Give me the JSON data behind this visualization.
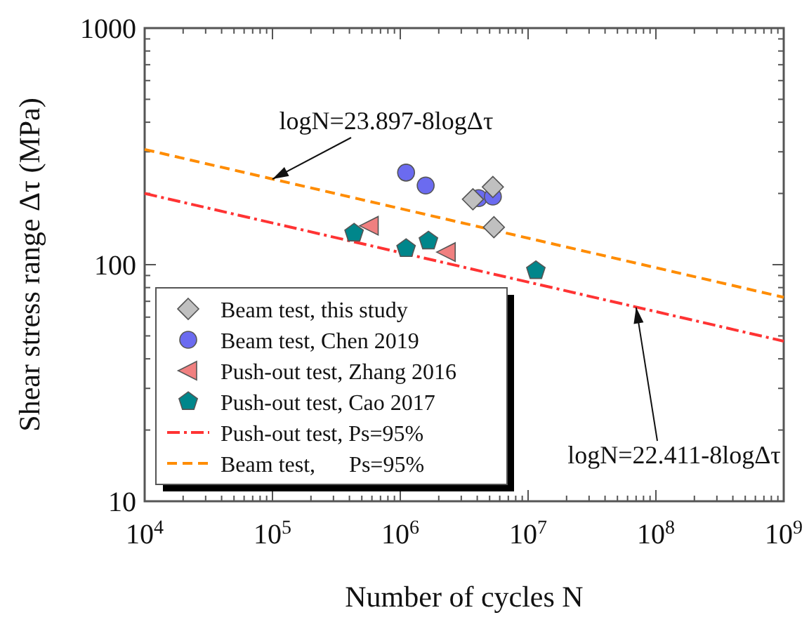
{
  "chart_data": {
    "type": "scatter",
    "xlabel": "Number of cycles N",
    "ylabel": "Shear stress range Δτ (MPa)",
    "log": "xy",
    "xlim": [
      10000,
      1000000000
    ],
    "ylim": [
      10,
      1000
    ],
    "xticks": [
      {
        "value": 10000,
        "label": "10$^{4}$"
      },
      {
        "value": 100000,
        "label": "10$^{5}$"
      },
      {
        "value": 1000000,
        "label": "10$^{6}$"
      },
      {
        "value": 10000000,
        "label": "10$^{7}$"
      },
      {
        "value": 100000000,
        "label": "10$^{8}$"
      },
      {
        "value": 1000000000,
        "label": "10$^{9}$"
      }
    ],
    "yticks": [
      10,
      100,
      1000
    ],
    "grid": false,
    "legend": "bottom left",
    "series": [
      {
        "name": "Beam test, this study",
        "marker": "diamond",
        "color": "#c0c0c0",
        "x": [
          3700000,
          5300000,
          5400000
        ],
        "values": [
          189,
          213,
          144
        ]
      },
      {
        "name": "Beam test, Chen 2019",
        "marker": "circle",
        "color": "#6b6bf0",
        "x": [
          1110000,
          1580000,
          4100000,
          5300000
        ],
        "values": [
          245,
          216,
          191,
          194
        ]
      },
      {
        "name": "Push-out test, Zhang 2016",
        "marker": "triangle",
        "color": "#f08080",
        "x": [
          577000,
          2310000
        ],
        "values": [
          146,
          113
        ]
      },
      {
        "name": "Push-out test, Cao 2017",
        "color": "#00868b",
        "x": [
          435000,
          1110000,
          1660000,
          11500000
        ],
        "values": [
          136,
          117,
          126,
          94.4
        ]
      },
      {
        "name": "Push-out test, Ps=95%",
        "type": "line",
        "line_style": "dashdot",
        "color": "#ff3333",
        "x": [
          10000,
          1000000000
        ],
        "values": [
          200,
          47.5
        ]
      },
      {
        "name": "Beam test,      Ps=95%",
        "type": "line",
        "line_style": "dashed",
        "color": "#ff8c00",
        "x": [
          10000,
          1000000000
        ],
        "values": [
          307,
          72.8
        ]
      }
    ],
    "annotations": [
      {
        "text": "logN=23.897-8logΔτ",
        "x": 100000,
        "y": 230
      },
      {
        "text": "logN=22.411-8logΔτ",
        "x": 70000000,
        "y": 66
      }
    ]
  }
}
